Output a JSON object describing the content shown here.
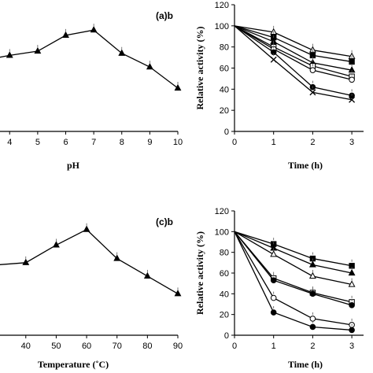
{
  "chart_data": [
    {
      "id": "ph-optimum",
      "type": "line",
      "panel_label": "(a)b",
      "xlabel": "pH",
      "ylabel": "",
      "xlim": [
        3.6,
        10
      ],
      "ylim": [
        0,
        120
      ],
      "x_ticks": [
        4,
        5,
        6,
        7,
        8,
        9,
        10
      ],
      "series": [
        {
          "marker": "triangle",
          "x": [
            3.6,
            4,
            5,
            6,
            7,
            8,
            9,
            10
          ],
          "y": [
            70,
            72,
            76,
            91,
            96,
            74,
            61,
            41
          ]
        }
      ]
    },
    {
      "id": "ph-stability",
      "type": "line",
      "panel_label": "",
      "xlabel": "Time (h)",
      "ylabel": "Relative activity (%)",
      "xlim": [
        0,
        3.3
      ],
      "ylim": [
        0,
        120
      ],
      "x_ticks": [
        0,
        1,
        2,
        3
      ],
      "y_ticks": [
        0,
        20,
        40,
        60,
        80,
        100,
        120
      ],
      "series": [
        {
          "marker": "open-triangle",
          "x": [
            0,
            1,
            2,
            3
          ],
          "y": [
            100,
            94,
            77,
            71
          ]
        },
        {
          "marker": "square",
          "x": [
            0,
            1,
            2,
            3
          ],
          "y": [
            100,
            89,
            72,
            66
          ]
        },
        {
          "marker": "triangle",
          "x": [
            0,
            1,
            2,
            3
          ],
          "y": [
            100,
            85,
            65,
            58
          ]
        },
        {
          "marker": "open-square",
          "x": [
            0,
            1,
            2,
            3
          ],
          "y": [
            100,
            80,
            62,
            52
          ]
        },
        {
          "marker": "open-circle",
          "x": [
            0,
            1,
            2,
            3
          ],
          "y": [
            100,
            78,
            58,
            49
          ]
        },
        {
          "marker": "circle",
          "x": [
            0,
            1,
            2,
            3
          ],
          "y": [
            100,
            75,
            42,
            34
          ]
        },
        {
          "marker": "cross",
          "x": [
            0,
            1,
            2,
            3
          ],
          "y": [
            100,
            68,
            37,
            30
          ]
        }
      ]
    },
    {
      "id": "temperature-optimum",
      "type": "line",
      "panel_label": "(c)b",
      "xlabel": "Temperature (˚C)",
      "ylabel": "",
      "xlim": [
        31,
        90
      ],
      "ylim": [
        0,
        120
      ],
      "x_ticks": [
        40,
        50,
        60,
        70,
        80,
        90
      ],
      "series": [
        {
          "marker": "triangle",
          "x": [
            31,
            40,
            50,
            60,
            70,
            80,
            90
          ],
          "y": [
            68,
            70,
            87,
            102,
            74,
            57,
            40
          ]
        }
      ]
    },
    {
      "id": "thermal-stability",
      "type": "line",
      "panel_label": "",
      "xlabel": "Time (h)",
      "ylabel": "Relative activity (%)",
      "xlim": [
        0,
        3.3
      ],
      "ylim": [
        0,
        120
      ],
      "x_ticks": [
        0,
        1,
        2,
        3
      ],
      "y_ticks": [
        0,
        20,
        40,
        60,
        80,
        100,
        120
      ],
      "series": [
        {
          "marker": "square",
          "x": [
            0,
            1,
            2,
            3
          ],
          "y": [
            100,
            88,
            74,
            67
          ]
        },
        {
          "marker": "triangle",
          "x": [
            0,
            1,
            2,
            3
          ],
          "y": [
            100,
            84,
            68,
            60
          ]
        },
        {
          "marker": "open-triangle",
          "x": [
            0,
            1,
            2,
            3
          ],
          "y": [
            100,
            78,
            57,
            49
          ]
        },
        {
          "marker": "open-square",
          "x": [
            0,
            1,
            2,
            3
          ],
          "y": [
            100,
            55,
            41,
            32
          ]
        },
        {
          "marker": "circle",
          "x": [
            0,
            1,
            2,
            3
          ],
          "y": [
            100,
            53,
            40,
            29
          ]
        },
        {
          "marker": "open-circle",
          "x": [
            0,
            1,
            2,
            3
          ],
          "y": [
            100,
            36,
            16,
            10
          ]
        },
        {
          "marker": "circle",
          "x": [
            0,
            1,
            2,
            3
          ],
          "y": [
            100,
            22,
            8,
            5
          ]
        }
      ]
    }
  ]
}
